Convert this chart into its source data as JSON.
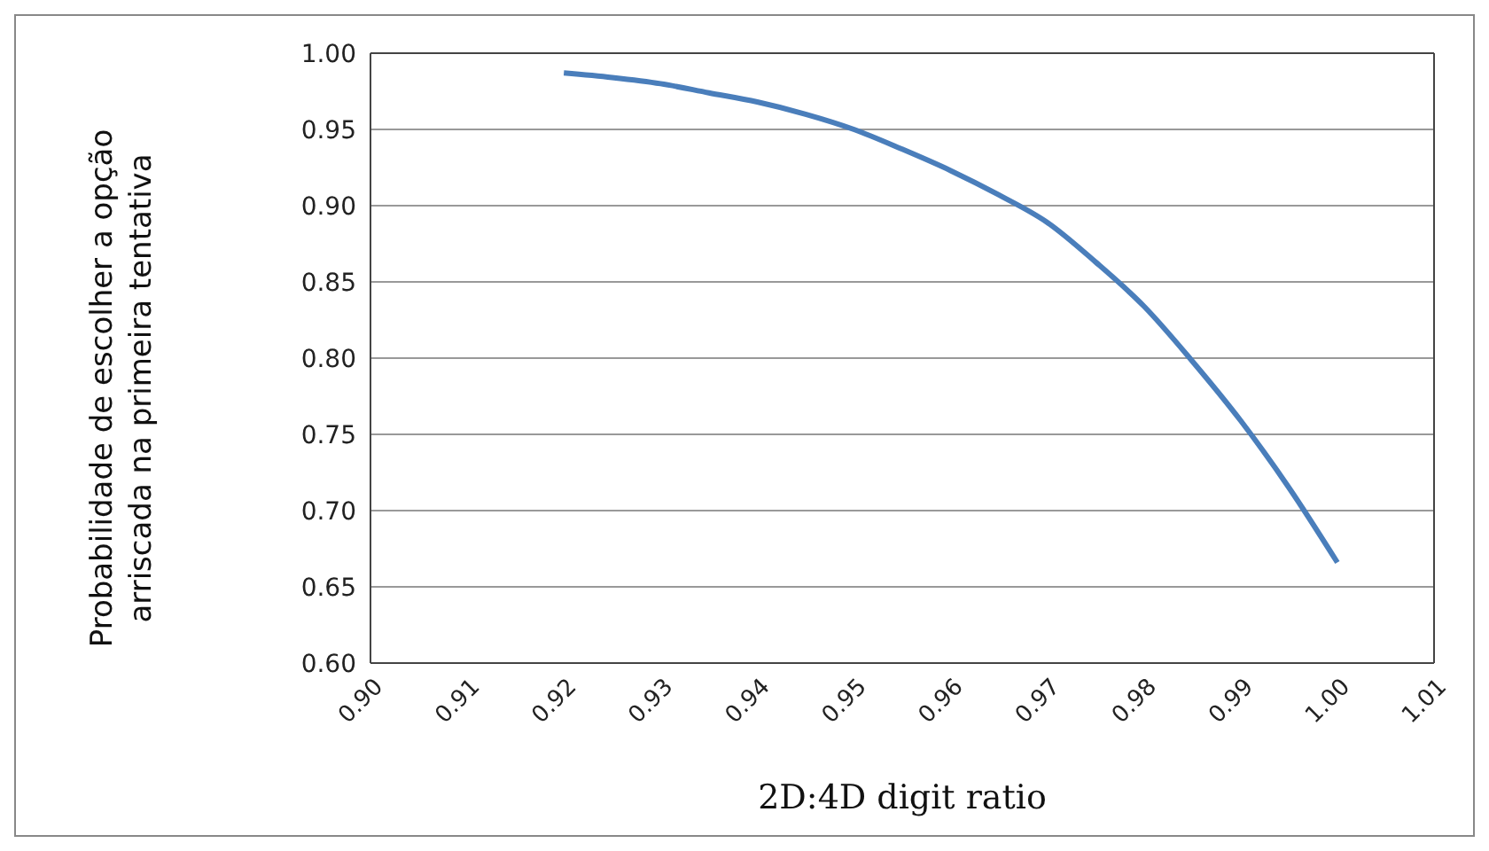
{
  "chart_data": {
    "type": "line",
    "xlabel": "2D:4D digit ratio",
    "ylabel": "Probabilidade de escolher a opção arriscada na primeira tentativa",
    "x": [
      0.92,
      0.925,
      0.93,
      0.935,
      0.94,
      0.945,
      0.95,
      0.955,
      0.96,
      0.965,
      0.97,
      0.975,
      0.98,
      0.985,
      0.99,
      0.995,
      1.0
    ],
    "series": [
      {
        "color": "#4a7ebb",
        "values": [
          0.987,
          0.984,
          0.98,
          0.974,
          0.968,
          0.96,
          0.95,
          0.937,
          0.923,
          0.907,
          0.889,
          0.863,
          0.834,
          0.798,
          0.759,
          0.715,
          0.666
        ]
      }
    ],
    "xlim": [
      0.9,
      1.01
    ],
    "xticks": [
      {
        "value": 0.9,
        "label": "0.90"
      },
      {
        "value": 0.91,
        "label": "0.91"
      },
      {
        "value": 0.92,
        "label": "0.92"
      },
      {
        "value": 0.93,
        "label": "0.93"
      },
      {
        "value": 0.94,
        "label": "0.94"
      },
      {
        "value": 0.95,
        "label": "0.95"
      },
      {
        "value": 0.96,
        "label": "0.96"
      },
      {
        "value": 0.97,
        "label": "0.97"
      },
      {
        "value": 0.98,
        "label": "0.98"
      },
      {
        "value": 0.99,
        "label": "0.99"
      },
      {
        "value": 1.0,
        "label": "1.00"
      },
      {
        "value": 1.01,
        "label": "1.01"
      }
    ],
    "ylim": [
      0.6,
      1.0
    ],
    "yticks": [
      {
        "value": 0.6,
        "label": "0.60"
      },
      {
        "value": 0.65,
        "label": "0.65"
      },
      {
        "value": 0.7,
        "label": "0.70"
      },
      {
        "value": 0.75,
        "label": "0.75"
      },
      {
        "value": 0.8,
        "label": "0.80"
      },
      {
        "value": 0.85,
        "label": "0.85"
      },
      {
        "value": 0.9,
        "label": "0.90"
      },
      {
        "value": 0.95,
        "label": "0.95"
      },
      {
        "value": 1.0,
        "label": "1.00"
      }
    ],
    "grid": "y",
    "marker": "none",
    "line_style": "solid",
    "legend": false
  }
}
